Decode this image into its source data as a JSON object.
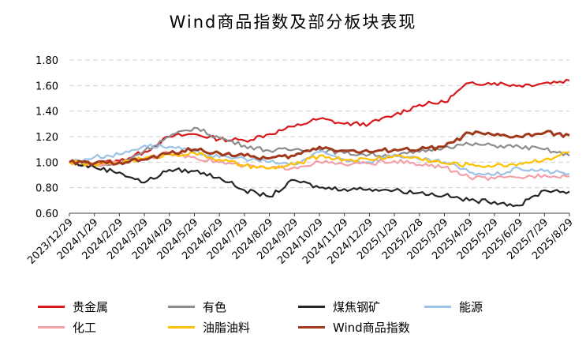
{
  "chart_data": {
    "type": "line",
    "title": "Wind商品指数及部分板块表现",
    "xlabel": "",
    "ylabel": "",
    "ylim": [
      0.6,
      1.8
    ],
    "yticks": [
      "0.60",
      "0.80",
      "1.00",
      "1.20",
      "1.40",
      "1.60",
      "1.80"
    ],
    "grid": true,
    "legend_position": "bottom",
    "x_ticks": [
      "2023/12/29",
      "2024/1/29",
      "2024/2/29",
      "2024/3/29",
      "2024/4/29",
      "2024/5/29",
      "2024/6/29",
      "2024/7/29",
      "2024/8/29",
      "2024/9/29",
      "2024/10/29",
      "2024/11/29",
      "2024/12/29",
      "2025/1/29",
      "2025/2/28",
      "2025/3/29",
      "2025/4/29",
      "2025/5/29",
      "2025/6/29",
      "2025/7/29",
      "2025/8/29"
    ],
    "x": [
      "2023/12/29",
      "2024/1/29",
      "2024/2/29",
      "2024/3/29",
      "2024/4/29",
      "2024/5/29",
      "2024/6/29",
      "2024/7/29",
      "2024/8/29",
      "2024/9/29",
      "2024/10/29",
      "2024/11/29",
      "2024/12/29",
      "2025/1/29",
      "2025/2/28",
      "2025/3/29",
      "2025/4/29",
      "2025/5/29",
      "2025/6/29",
      "2025/7/29",
      "2025/8/29"
    ],
    "series": [
      {
        "name": "贵金属",
        "color": "#d7191c",
        "values": [
          1.0,
          0.99,
          1.01,
          1.08,
          1.2,
          1.22,
          1.18,
          1.17,
          1.22,
          1.28,
          1.34,
          1.3,
          1.3,
          1.37,
          1.45,
          1.47,
          1.62,
          1.62,
          1.6,
          1.62,
          1.64
        ]
      },
      {
        "name": "有色",
        "color": "#8c8c8c",
        "values": [
          1.0,
          0.97,
          0.99,
          1.09,
          1.2,
          1.27,
          1.19,
          1.13,
          1.09,
          1.1,
          1.1,
          1.07,
          1.06,
          1.05,
          1.08,
          1.12,
          1.14,
          1.13,
          1.12,
          1.1,
          1.05
        ]
      },
      {
        "name": "煤焦钢矿",
        "color": "#262626",
        "values": [
          1.0,
          0.96,
          0.92,
          0.84,
          0.94,
          0.93,
          0.88,
          0.78,
          0.73,
          0.86,
          0.8,
          0.79,
          0.79,
          0.78,
          0.76,
          0.74,
          0.7,
          0.69,
          0.66,
          0.78,
          0.77
        ]
      },
      {
        "name": "能源",
        "color": "#9dc3e6",
        "values": [
          1.0,
          1.04,
          1.06,
          1.13,
          1.12,
          1.08,
          1.04,
          1.03,
          1.0,
          0.98,
          1.08,
          1.02,
          1.0,
          1.06,
          1.02,
          1.0,
          0.92,
          0.9,
          0.95,
          0.93,
          0.91
        ]
      },
      {
        "name": "化工",
        "color": "#f4a0a8",
        "values": [
          1.0,
          0.98,
          1.0,
          1.03,
          1.07,
          1.04,
          1.0,
          0.97,
          0.95,
          0.96,
          1.0,
          0.98,
          0.99,
          1.01,
          0.98,
          0.96,
          0.88,
          0.87,
          0.88,
          0.9,
          0.89
        ]
      },
      {
        "name": "油脂油料",
        "color": "#ffc000",
        "values": [
          1.0,
          0.98,
          1.0,
          1.03,
          1.06,
          1.07,
          1.02,
          0.97,
          0.95,
          0.98,
          1.05,
          1.02,
          1.02,
          1.05,
          1.03,
          0.99,
          0.98,
          0.97,
          0.99,
          1.02,
          1.08
        ]
      },
      {
        "name": "Wind商品指数",
        "color": "#a0391c",
        "values": [
          1.0,
          0.99,
          1.0,
          1.02,
          1.07,
          1.1,
          1.07,
          1.05,
          1.03,
          1.05,
          1.12,
          1.09,
          1.08,
          1.1,
          1.1,
          1.12,
          1.23,
          1.21,
          1.2,
          1.23,
          1.21
        ]
      }
    ]
  }
}
